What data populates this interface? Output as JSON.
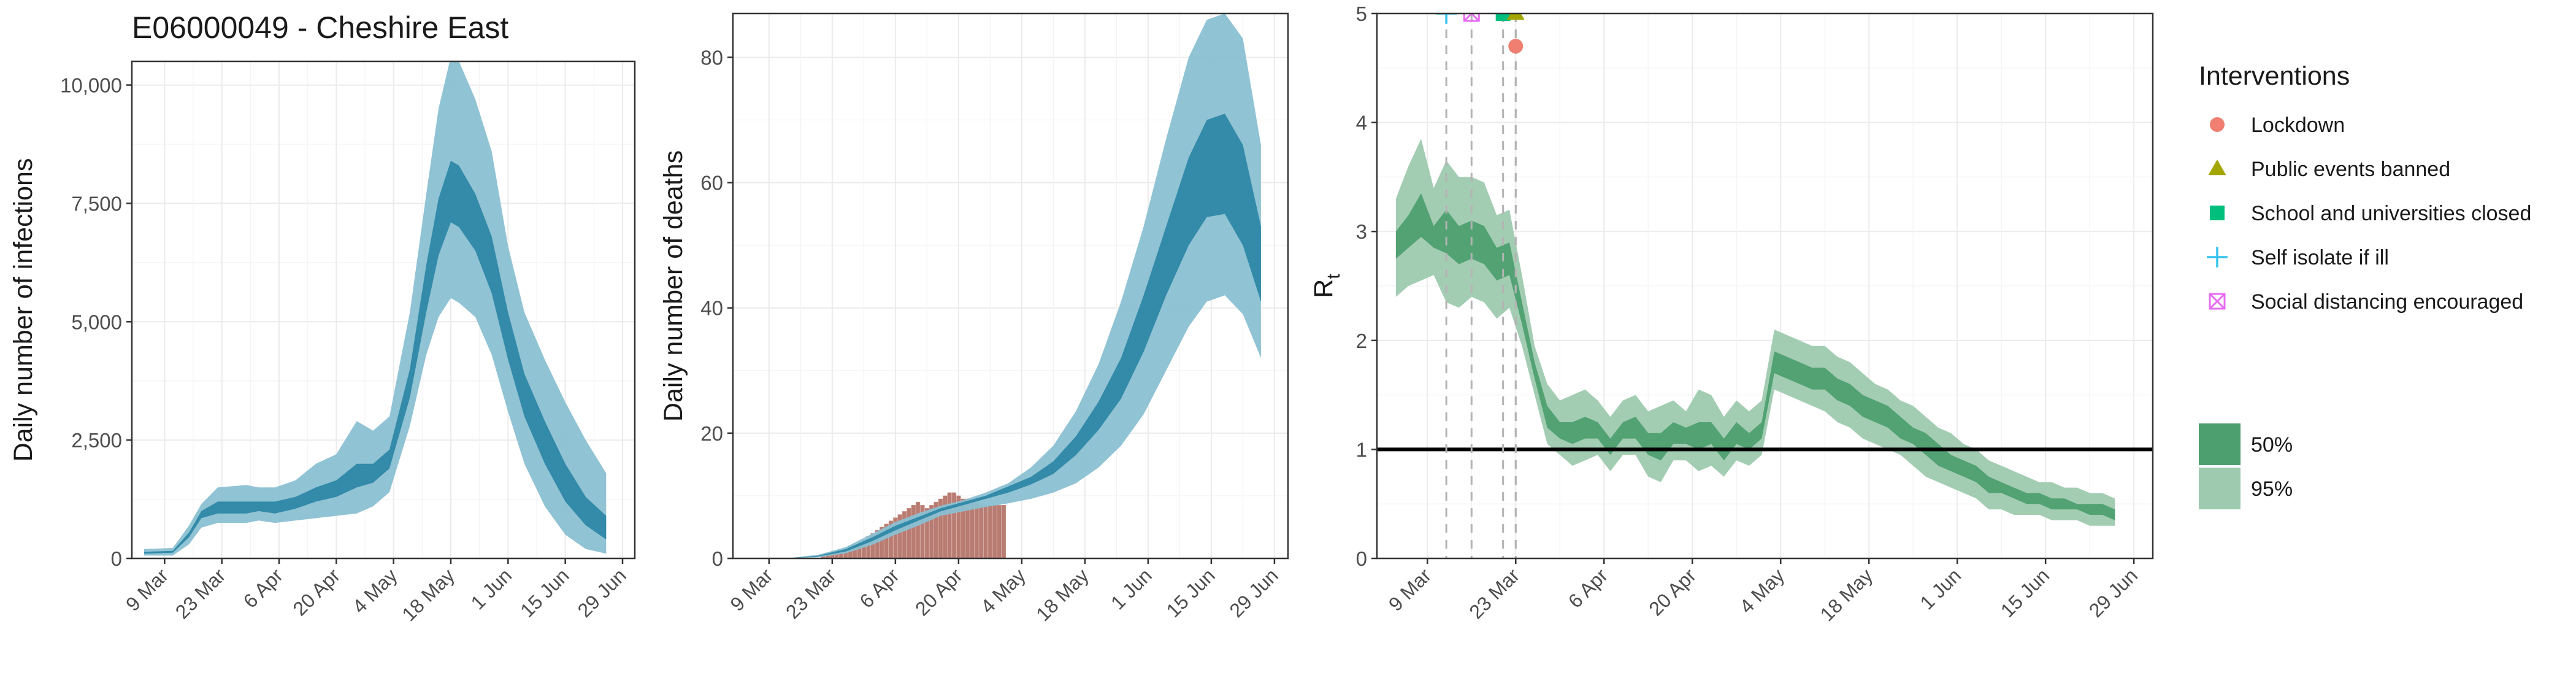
{
  "title": "E06000049 - Cheshire East",
  "x_tick_labels": [
    "9 Mar",
    "23 Mar",
    "6 Apr",
    "20 Apr",
    "4 May",
    "18 May",
    "1 Jun",
    "15 Jun",
    "29 Jun"
  ],
  "x_tick_dates": [
    "2020-03-09",
    "2020-03-23",
    "2020-04-06",
    "2020-04-20",
    "2020-05-04",
    "2020-05-18",
    "2020-06-01",
    "2020-06-15",
    "2020-06-29"
  ],
  "colors": {
    "blue_50": "#2e87a7",
    "blue_95": "#8ac0d2",
    "green_50": "#4e9f70",
    "green_95": "#9ecaaf",
    "deaths_bar": "#b97c72",
    "lockdown": "#f07f71",
    "public_events": "#a3a500",
    "school": "#00bf7d",
    "self_isolate": "#33c2ee",
    "social_distancing": "#e76bf3"
  },
  "chart_data": [
    {
      "type": "area",
      "ylabel": "Daily number of infections",
      "xlabel": "",
      "ylim": [
        0,
        10500
      ],
      "y_ticks": [
        0,
        2500,
        5000,
        7500,
        10000
      ],
      "y_tick_labels": [
        "0",
        "2,500",
        "5,000",
        "7,500",
        "10,000"
      ],
      "x": [
        "2020-03-04",
        "2020-03-11",
        "2020-03-15",
        "2020-03-18",
        "2020-03-22",
        "2020-03-29",
        "2020-04-01",
        "2020-04-05",
        "2020-04-10",
        "2020-04-15",
        "2020-04-20",
        "2020-04-25",
        "2020-04-29",
        "2020-05-03",
        "2020-05-08",
        "2020-05-12",
        "2020-05-15",
        "2020-05-18",
        "2020-05-20",
        "2020-05-24",
        "2020-05-28",
        "2020-06-01",
        "2020-06-05",
        "2020-06-10",
        "2020-06-15",
        "2020-06-20",
        "2020-06-25"
      ],
      "series": [
        {
          "band": "95",
          "lower": [
            60,
            60,
            300,
            650,
            750,
            750,
            800,
            750,
            800,
            850,
            900,
            950,
            1100,
            1400,
            2800,
            4300,
            5100,
            5500,
            5400,
            5100,
            4300,
            3100,
            2000,
            1100,
            500,
            200,
            100
          ],
          "upper": [
            200,
            220,
            700,
            1150,
            1500,
            1550,
            1500,
            1500,
            1650,
            2000,
            2200,
            2900,
            2700,
            3000,
            5200,
            7700,
            9500,
            10600,
            10500,
            9700,
            8600,
            6600,
            5200,
            4200,
            3300,
            2500,
            1800
          ]
        },
        {
          "band": "50",
          "lower": [
            100,
            120,
            450,
            850,
            950,
            950,
            1000,
            950,
            1050,
            1200,
            1300,
            1500,
            1600,
            1900,
            3400,
            5200,
            6400,
            7100,
            7000,
            6500,
            5600,
            4200,
            3000,
            2000,
            1200,
            700,
            400
          ],
          "upper": [
            140,
            160,
            550,
            1000,
            1200,
            1200,
            1200,
            1200,
            1300,
            1500,
            1650,
            2000,
            2000,
            2300,
            4000,
            6200,
            7600,
            8400,
            8300,
            7700,
            6800,
            5200,
            3900,
            2900,
            2000,
            1300,
            900
          ]
        }
      ]
    },
    {
      "type": "area",
      "ylabel": "Daily number of deaths",
      "xlabel": "",
      "ylim": [
        0,
        87
      ],
      "y_ticks": [
        0,
        20,
        40,
        60,
        80
      ],
      "y_tick_labels": [
        "0",
        "20",
        "40",
        "60",
        "80"
      ],
      "x": [
        "2020-03-04",
        "2020-03-14",
        "2020-03-20",
        "2020-03-26",
        "2020-04-01",
        "2020-04-06",
        "2020-04-11",
        "2020-04-16",
        "2020-04-21",
        "2020-04-26",
        "2020-05-01",
        "2020-05-06",
        "2020-05-11",
        "2020-05-16",
        "2020-05-21",
        "2020-05-26",
        "2020-05-31",
        "2020-06-05",
        "2020-06-10",
        "2020-06-14",
        "2020-06-18",
        "2020-06-22",
        "2020-06-26"
      ],
      "series": [
        {
          "band": "95",
          "lower": [
            0,
            0,
            0.2,
            0.8,
            2.2,
            3.8,
            5.2,
            6.8,
            7.5,
            8.2,
            8.8,
            9.5,
            10.5,
            12,
            14.5,
            18,
            23,
            30,
            37,
            41,
            42,
            39,
            32
          ],
          "upper": [
            0,
            0.1,
            0.6,
            1.8,
            4,
            5.8,
            7.2,
            8.4,
            9.3,
            10.5,
            12,
            14.5,
            18,
            23.5,
            31,
            41,
            53,
            67,
            80,
            86,
            87,
            83,
            66
          ]
        },
        {
          "band": "50",
          "lower": [
            0,
            0.05,
            0.3,
            1.1,
            2.8,
            4.5,
            6,
            7.5,
            8.5,
            9.5,
            10.5,
            11.8,
            13.5,
            16.5,
            20.5,
            25.5,
            33,
            42,
            50,
            54.5,
            55,
            50,
            41
          ]
        },
        {
          "band": "50_upper",
          "upper": [
            0,
            0.08,
            0.45,
            1.5,
            3.4,
            5.2,
            6.6,
            8,
            9,
            10,
            11.5,
            13,
            15.5,
            19.5,
            25,
            32,
            42,
            53,
            64,
            70,
            71,
            66,
            53
          ]
        }
      ],
      "bars": {
        "name": "observed deaths",
        "x": [
          "2020-03-21",
          "2020-03-22",
          "2020-03-23",
          "2020-03-24",
          "2020-03-25",
          "2020-03-26",
          "2020-03-27",
          "2020-03-28",
          "2020-03-29",
          "2020-03-30",
          "2020-03-31",
          "2020-04-01",
          "2020-04-02",
          "2020-04-03",
          "2020-04-04",
          "2020-04-05",
          "2020-04-06",
          "2020-04-07",
          "2020-04-08",
          "2020-04-09",
          "2020-04-10",
          "2020-04-11",
          "2020-04-12",
          "2020-04-13",
          "2020-04-14",
          "2020-04-15",
          "2020-04-16",
          "2020-04-17",
          "2020-04-18",
          "2020-04-19",
          "2020-04-20",
          "2020-04-21",
          "2020-04-22",
          "2020-04-23",
          "2020-04-24",
          "2020-04-25",
          "2020-04-26",
          "2020-04-27",
          "2020-04-28",
          "2020-04-29",
          "2020-04-30"
        ],
        "values": [
          0.3,
          0.5,
          0.8,
          1,
          1.3,
          1.5,
          2,
          2.3,
          2.5,
          3,
          3.5,
          4,
          4.5,
          5,
          5.5,
          6,
          6.5,
          7,
          7.5,
          8,
          8.5,
          9,
          8.5,
          8,
          8.5,
          9,
          9.5,
          10,
          10.5,
          10.5,
          10,
          9.5,
          9.5,
          9,
          9,
          8.5,
          8.5,
          8.5,
          8.5,
          8.5,
          8.5
        ]
      }
    },
    {
      "type": "area",
      "ylabel": "R",
      "ylabel_subscript": "t",
      "xlabel": "",
      "ylim": [
        0,
        5
      ],
      "y_ticks": [
        0,
        1,
        2,
        3,
        4,
        5
      ],
      "y_tick_labels": [
        "0",
        "1",
        "2",
        "3",
        "4",
        "5"
      ],
      "reference_line": 1,
      "x": [
        "2020-03-04",
        "2020-03-06",
        "2020-03-08",
        "2020-03-10",
        "2020-03-12",
        "2020-03-14",
        "2020-03-16",
        "2020-03-18",
        "2020-03-20",
        "2020-03-22",
        "2020-03-24",
        "2020-03-26",
        "2020-03-28",
        "2020-03-30",
        "2020-04-01",
        "2020-04-03",
        "2020-04-05",
        "2020-04-07",
        "2020-04-09",
        "2020-04-11",
        "2020-04-13",
        "2020-04-15",
        "2020-04-17",
        "2020-04-19",
        "2020-04-21",
        "2020-04-23",
        "2020-04-25",
        "2020-04-27",
        "2020-04-29",
        "2020-05-01",
        "2020-05-03",
        "2020-05-05",
        "2020-05-07",
        "2020-05-09",
        "2020-05-11",
        "2020-05-13",
        "2020-05-15",
        "2020-05-17",
        "2020-05-19",
        "2020-05-21",
        "2020-05-23",
        "2020-05-25",
        "2020-05-27",
        "2020-05-29",
        "2020-05-31",
        "2020-06-02",
        "2020-06-04",
        "2020-06-06",
        "2020-06-08",
        "2020-06-10",
        "2020-06-12",
        "2020-06-14",
        "2020-06-16",
        "2020-06-18",
        "2020-06-20",
        "2020-06-22",
        "2020-06-24",
        "2020-06-26"
      ],
      "series": [
        {
          "band": "95",
          "lower": [
            2.4,
            2.5,
            2.55,
            2.6,
            2.35,
            2.3,
            2.4,
            2.35,
            2.2,
            2.3,
            1.95,
            1.5,
            1.05,
            0.95,
            0.85,
            0.9,
            0.95,
            0.8,
            0.95,
            0.95,
            0.75,
            0.7,
            0.9,
            0.9,
            0.8,
            0.85,
            0.75,
            0.9,
            0.85,
            0.95,
            1.55,
            1.5,
            1.45,
            1.4,
            1.35,
            1.25,
            1.2,
            1.1,
            1.05,
            1.0,
            0.95,
            0.85,
            0.75,
            0.7,
            0.65,
            0.6,
            0.55,
            0.45,
            0.45,
            0.4,
            0.4,
            0.4,
            0.35,
            0.35,
            0.35,
            0.3,
            0.3,
            0.3
          ],
          "upper": [
            3.3,
            3.6,
            3.85,
            3.4,
            3.65,
            3.5,
            3.5,
            3.45,
            3.15,
            3.2,
            2.6,
            1.95,
            1.6,
            1.45,
            1.5,
            1.55,
            1.45,
            1.3,
            1.45,
            1.5,
            1.35,
            1.4,
            1.45,
            1.35,
            1.55,
            1.5,
            1.3,
            1.45,
            1.35,
            1.45,
            2.1,
            2.05,
            2.0,
            1.95,
            1.95,
            1.85,
            1.8,
            1.7,
            1.6,
            1.55,
            1.45,
            1.4,
            1.3,
            1.2,
            1.15,
            1.05,
            1.0,
            0.9,
            0.85,
            0.8,
            0.75,
            0.7,
            0.7,
            0.65,
            0.65,
            0.6,
            0.6,
            0.55
          ]
        },
        {
          "band": "50",
          "lower": [
            2.75,
            2.85,
            2.95,
            2.85,
            2.8,
            2.7,
            2.75,
            2.7,
            2.55,
            2.6,
            2.15,
            1.65,
            1.2,
            1.1,
            1.05,
            1.1,
            1.1,
            0.95,
            1.1,
            1.1,
            0.95,
            0.9,
            1.05,
            1.05,
            1.0,
            1.05,
            0.9,
            1.05,
            1.0,
            1.1,
            1.7,
            1.65,
            1.6,
            1.55,
            1.55,
            1.45,
            1.4,
            1.3,
            1.25,
            1.2,
            1.1,
            1.05,
            0.95,
            0.85,
            0.8,
            0.75,
            0.7,
            0.6,
            0.6,
            0.55,
            0.5,
            0.5,
            0.45,
            0.45,
            0.45,
            0.4,
            0.4,
            0.35
          ],
          "upper": [
            3.0,
            3.15,
            3.35,
            3.05,
            3.2,
            3.05,
            3.1,
            3.05,
            2.85,
            2.9,
            2.35,
            1.8,
            1.4,
            1.25,
            1.25,
            1.3,
            1.25,
            1.1,
            1.25,
            1.3,
            1.15,
            1.15,
            1.25,
            1.2,
            1.25,
            1.25,
            1.1,
            1.25,
            1.15,
            1.25,
            1.9,
            1.85,
            1.8,
            1.75,
            1.75,
            1.65,
            1.6,
            1.5,
            1.45,
            1.4,
            1.3,
            1.2,
            1.15,
            1.05,
            0.95,
            0.9,
            0.85,
            0.75,
            0.7,
            0.65,
            0.6,
            0.6,
            0.55,
            0.55,
            0.5,
            0.5,
            0.5,
            0.45
          ]
        }
      ],
      "interventions": [
        {
          "name": "Self isolate if ill",
          "date": "2020-03-12",
          "y": 5.0,
          "shape": "plus",
          "color_key": "self_isolate"
        },
        {
          "name": "Social distancing encouraged",
          "date": "2020-03-16",
          "y": 5.0,
          "shape": "boxx",
          "color_key": "social_distancing"
        },
        {
          "name": "School and universities closed",
          "date": "2020-03-21",
          "y": 5.0,
          "shape": "square",
          "color_key": "school"
        },
        {
          "name": "Public events banned",
          "date": "2020-03-23",
          "y": 5.0,
          "shape": "triangle",
          "color_key": "public_events"
        },
        {
          "name": "Lockdown",
          "date": "2020-03-23",
          "y": 4.7,
          "shape": "circle",
          "color_key": "lockdown"
        }
      ]
    }
  ],
  "legend": {
    "title": "Interventions",
    "items": [
      {
        "label": "Lockdown",
        "shape": "circle",
        "color_key": "lockdown"
      },
      {
        "label": "Public events banned",
        "shape": "triangle",
        "color_key": "public_events"
      },
      {
        "label": "School and universities closed",
        "shape": "square",
        "color_key": "school"
      },
      {
        "label": "Self isolate if ill",
        "shape": "plus",
        "color_key": "self_isolate"
      },
      {
        "label": "Social distancing encouraged",
        "shape": "boxx",
        "color_key": "social_distancing"
      }
    ],
    "bands": [
      {
        "label": "50%",
        "color_key": "green_50"
      },
      {
        "label": "95%",
        "color_key": "green_95"
      }
    ]
  }
}
